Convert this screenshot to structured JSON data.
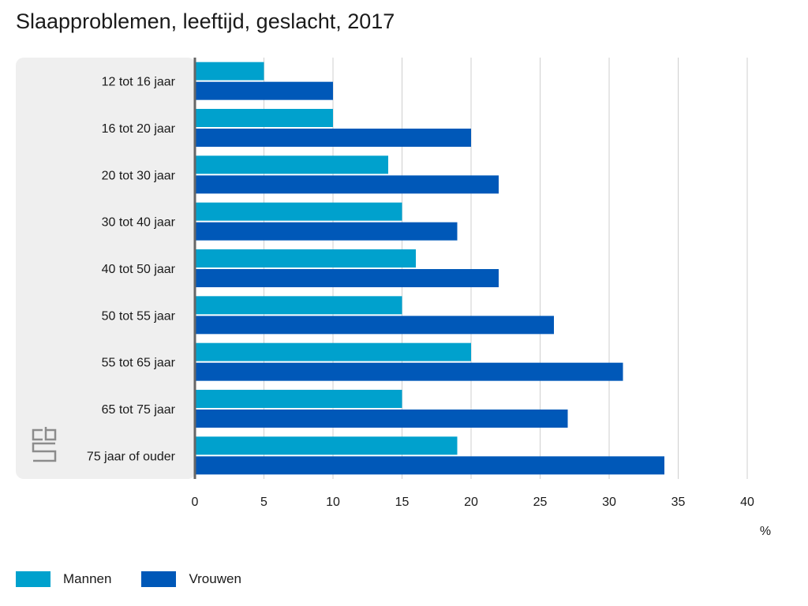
{
  "chart_data": {
    "type": "bar",
    "orientation": "horizontal",
    "title": "Slaapproblemen, leeftijd, geslacht, 2017",
    "unit": "%",
    "categories": [
      "12 tot 16 jaar",
      "16 tot 20 jaar",
      "20 tot 30 jaar",
      "30 tot 40 jaar",
      "40 tot 50 jaar",
      "50 tot 55 jaar",
      "55 tot 65 jaar",
      "65 tot 75 jaar",
      "75 jaar of ouder"
    ],
    "series": [
      {
        "name": "Mannen",
        "color": "#00a1cd",
        "values": [
          5,
          10,
          14,
          15,
          16,
          15,
          20,
          15,
          19
        ]
      },
      {
        "name": "Vrouwen",
        "color": "#0058b8",
        "values": [
          10,
          20,
          22,
          19,
          22,
          26,
          31,
          27,
          34
        ]
      }
    ],
    "xlim": [
      0,
      40
    ],
    "xticks": [
      0,
      5,
      10,
      15,
      20,
      25,
      30,
      35,
      40
    ],
    "grid": true,
    "legend_position": "bottom-left"
  },
  "logo": {
    "name": "cbs-logo",
    "text": "cbs"
  }
}
